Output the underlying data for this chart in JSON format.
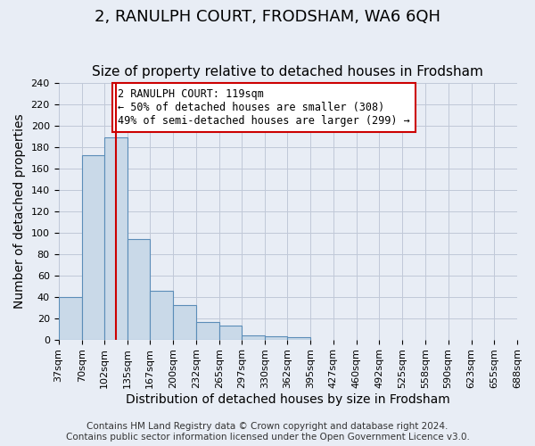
{
  "title": "2, RANULPH COURT, FRODSHAM, WA6 6QH",
  "subtitle": "Size of property relative to detached houses in Frodsham",
  "xlabel": "Distribution of detached houses by size in Frodsham",
  "ylabel": "Number of detached properties",
  "bar_values": [
    40,
    173,
    189,
    94,
    46,
    32,
    16,
    13,
    4,
    3,
    2
  ],
  "bin_edges": [
    37,
    70,
    102,
    135,
    167,
    200,
    232,
    265,
    297,
    330,
    362,
    395,
    427,
    460,
    492,
    525,
    558,
    590,
    623,
    655,
    688
  ],
  "tick_labels": [
    "37sqm",
    "70sqm",
    "102sqm",
    "135sqm",
    "167sqm",
    "200sqm",
    "232sqm",
    "265sqm",
    "297sqm",
    "330sqm",
    "362sqm",
    "395sqm",
    "427sqm",
    "460sqm",
    "492sqm",
    "525sqm",
    "558sqm",
    "590sqm",
    "623sqm",
    "655sqm",
    "688sqm"
  ],
  "bar_color": "#c9d9e8",
  "bar_edge_color": "#5b8db8",
  "vline_x": 119,
  "vline_color": "#cc0000",
  "annotation_text": "2 RANULPH COURT: 119sqm\n← 50% of detached houses are smaller (308)\n49% of semi-detached houses are larger (299) →",
  "annotation_box_color": "#ffffff",
  "annotation_box_edge": "#cc0000",
  "ylim": [
    0,
    240
  ],
  "yticks": [
    0,
    20,
    40,
    60,
    80,
    100,
    120,
    140,
    160,
    180,
    200,
    220,
    240
  ],
  "grid_color": "#c0c8d8",
  "bg_color": "#e8edf5",
  "footer_line1": "Contains HM Land Registry data © Crown copyright and database right 2024.",
  "footer_line2": "Contains public sector information licensed under the Open Government Licence v3.0.",
  "title_fontsize": 13,
  "subtitle_fontsize": 11,
  "xlabel_fontsize": 10,
  "ylabel_fontsize": 10,
  "tick_fontsize": 8,
  "footer_fontsize": 7.5
}
